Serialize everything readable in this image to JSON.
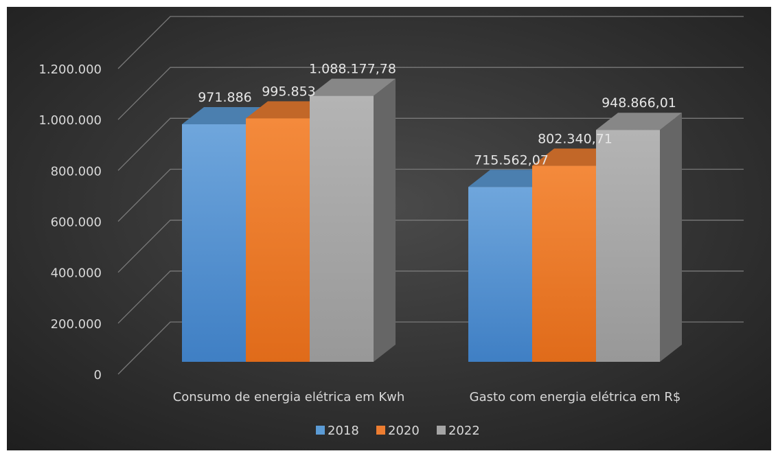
{
  "chart_data": {
    "type": "bar",
    "title": "",
    "xlabel": "",
    "ylabel": "",
    "categories": [
      "Consumo de energia elétrica em Kwh",
      "Gasto com energia elétrica em R$"
    ],
    "series": [
      {
        "name": "2018",
        "values": [
          971886,
          715562.07
        ],
        "labels": [
          "971.886",
          "715.562,07"
        ],
        "color": "#5b9bd5"
      },
      {
        "name": "2020",
        "values": [
          995853,
          802340.71
        ],
        "labels": [
          "995.853",
          "802.340,71"
        ],
        "color": "#ed7d31"
      },
      {
        "name": "2022",
        "values": [
          1088177.78,
          948866.01
        ],
        "labels": [
          "1.088.177,78",
          "948.866,01"
        ],
        "color": "#a5a5a5"
      }
    ],
    "ylim": [
      0,
      1200000
    ],
    "y_ticks": [
      0,
      200000,
      400000,
      600000,
      800000,
      1000000,
      1200000
    ],
    "y_tick_labels": [
      "0",
      "200.000",
      "400.000",
      "600.000",
      "800.000",
      "1.000.000",
      "1.200.000"
    ],
    "grid": true,
    "legend": "bottom",
    "three_d": true,
    "background": "#2b2b2b"
  }
}
